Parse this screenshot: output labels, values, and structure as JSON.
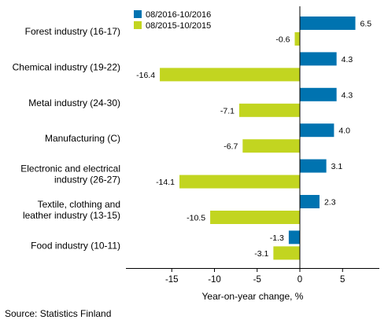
{
  "chart_data": {
    "type": "bar",
    "orientation": "horizontal",
    "categories": [
      [
        "Forest industry (16-17)"
      ],
      [
        "Chemical industry (19-22)"
      ],
      [
        "Metal industry (24-30)"
      ],
      [
        "Manufacturing (C)"
      ],
      [
        "Electronic and electrical",
        "industry (26-27)"
      ],
      [
        "Textile, clothing and",
        "leather industry (13-15)"
      ],
      [
        "Food industry (10-11)"
      ]
    ],
    "series": [
      {
        "name": "08/2016-10/2016",
        "color": "#0073b0",
        "values": [
          6.5,
          4.3,
          4.3,
          4.0,
          3.1,
          2.3,
          -1.3
        ]
      },
      {
        "name": "08/2015-10/2015",
        "color": "#c2d520",
        "values": [
          -0.6,
          -16.4,
          -7.1,
          -6.7,
          -14.1,
          -10.5,
          -3.1
        ]
      }
    ],
    "xlabel": "Year-on-year change, %",
    "xlim": [
      -20,
      9
    ],
    "xticks": [
      -15,
      -10,
      -5,
      0,
      5
    ],
    "legend": "top-left",
    "grid": false
  },
  "source": "Source: Statistics Finland"
}
